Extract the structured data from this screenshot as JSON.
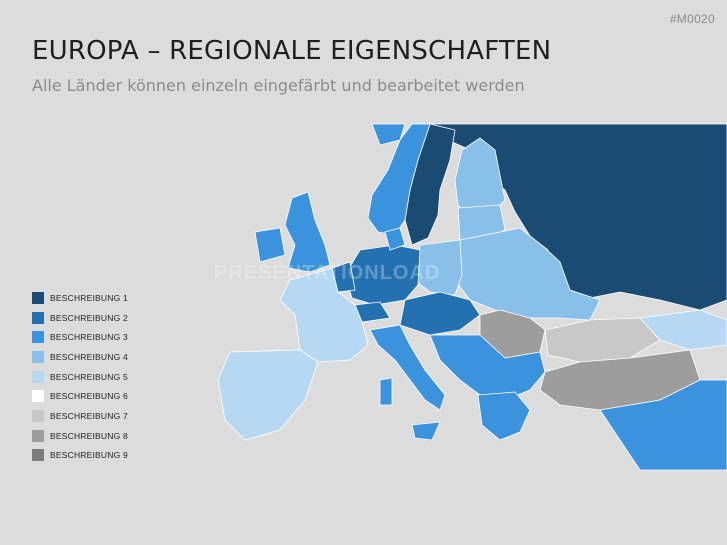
{
  "slide": {
    "id": "#M0020",
    "title": "EUROPA – REGIONALE EIGENSCHAFTEN",
    "subtitle": "Alle Länder können einzeln eingefärbt und bearbeitet werden",
    "watermark": "PRESENTATIONLOAD"
  },
  "legend": [
    {
      "label": "BESCHREIBUNG 1",
      "color": "#1a4b73"
    },
    {
      "label": "BESCHREIBUNG 2",
      "color": "#2371b0"
    },
    {
      "label": "BESCHREIBUNG 3",
      "color": "#3a93dc"
    },
    {
      "label": "BESCHREIBUNG 4",
      "color": "#88c0ea"
    },
    {
      "label": "BESCHREIBUNG 5",
      "color": "#b6d8f2"
    },
    {
      "label": "BESCHREIBUNG 6",
      "color": "#ffffff"
    },
    {
      "label": "BESCHREIBUNG 7",
      "color": "#c8c8c8"
    },
    {
      "label": "BESCHREIBUNG 8",
      "color": "#9d9d9d"
    },
    {
      "label": "BESCHREIBUNG 9",
      "color": "#7c7c7c"
    }
  ],
  "map_colors": {
    "russia": "#1a4b73",
    "sweden": "#1a4b73",
    "germany": "#2371b0",
    "poland_east": "#88c0ea",
    "norway": "#3a93dc",
    "finland": "#88c0ea",
    "uk": "#3a93dc",
    "ireland": "#3a93dc",
    "france": "#b6d8f2",
    "iberia": "#b6d8f2",
    "italy": "#3a93dc",
    "romania": "#9d9d9d",
    "turkey": "#9d9d9d",
    "middle_east": "#3a93dc",
    "ukraine": "#88c0ea",
    "balkans": "#3a93dc",
    "black_sea": "#c8c8c8",
    "caucasus": "#b6d8f2",
    "austria": "#2371b0",
    "hungary": "#2371b0"
  }
}
